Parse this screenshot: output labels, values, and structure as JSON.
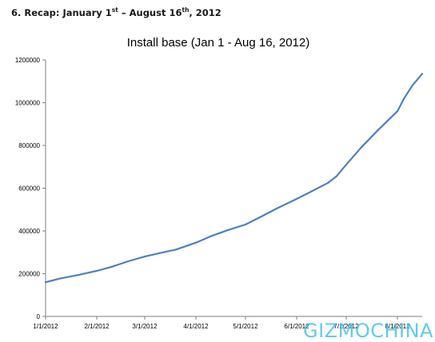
{
  "heading": {
    "prefix": "6. Recap: January 1",
    "sup1": "st",
    "middle": " – August 16",
    "sup2": "th",
    "suffix": ", 2012"
  },
  "watermark": "GIZMOCHINA",
  "colors": {
    "line": "#4f81bd",
    "axis": "#7f7f7f",
    "text": "#000000"
  },
  "chart_data": {
    "type": "line",
    "title": "Install base (Jan 1 - Aug 16, 2012)",
    "xlabel": "",
    "ylabel": "",
    "grid": false,
    "legend": "none",
    "xlim": [
      "2012-01-01",
      "2012-08-16"
    ],
    "ylim": [
      0,
      1200000
    ],
    "yticks": [
      0,
      200000,
      400000,
      600000,
      800000,
      1000000,
      1200000
    ],
    "ytick_labels": [
      "0",
      "200000",
      "400000",
      "600000",
      "800000",
      "1000000",
      "1200000"
    ],
    "xticks": [
      "2012-01-01",
      "2012-02-01",
      "2012-03-01",
      "2012-04-01",
      "2012-05-01",
      "2012-06-01",
      "2012-07-01",
      "2012-08-01"
    ],
    "xtick_labels": [
      "1/1/2012",
      "2/1/2012",
      "3/1/2012",
      "4/1/2012",
      "5/1/2012",
      "6/1/2012",
      "7/1/2012",
      "8/1/2012"
    ],
    "series": [
      {
        "x": [
          "2012-01-01",
          "2012-01-10",
          "2012-01-20",
          "2012-02-01",
          "2012-02-10",
          "2012-02-20",
          "2012-03-01",
          "2012-03-10",
          "2012-03-20",
          "2012-04-01",
          "2012-04-10",
          "2012-04-20",
          "2012-05-01",
          "2012-05-10",
          "2012-05-20",
          "2012-06-01",
          "2012-06-10",
          "2012-06-20",
          "2012-06-25",
          "2012-07-01",
          "2012-07-10",
          "2012-07-20",
          "2012-08-01",
          "2012-08-05",
          "2012-08-10",
          "2012-08-16"
        ],
        "y": [
          160000,
          178000,
          193000,
          213000,
          232000,
          258000,
          280000,
          296000,
          313000,
          345000,
          375000,
          403000,
          430000,
          465000,
          505000,
          550000,
          585000,
          625000,
          655000,
          710000,
          790000,
          870000,
          960000,
          1020000,
          1080000,
          1135000
        ]
      }
    ]
  }
}
